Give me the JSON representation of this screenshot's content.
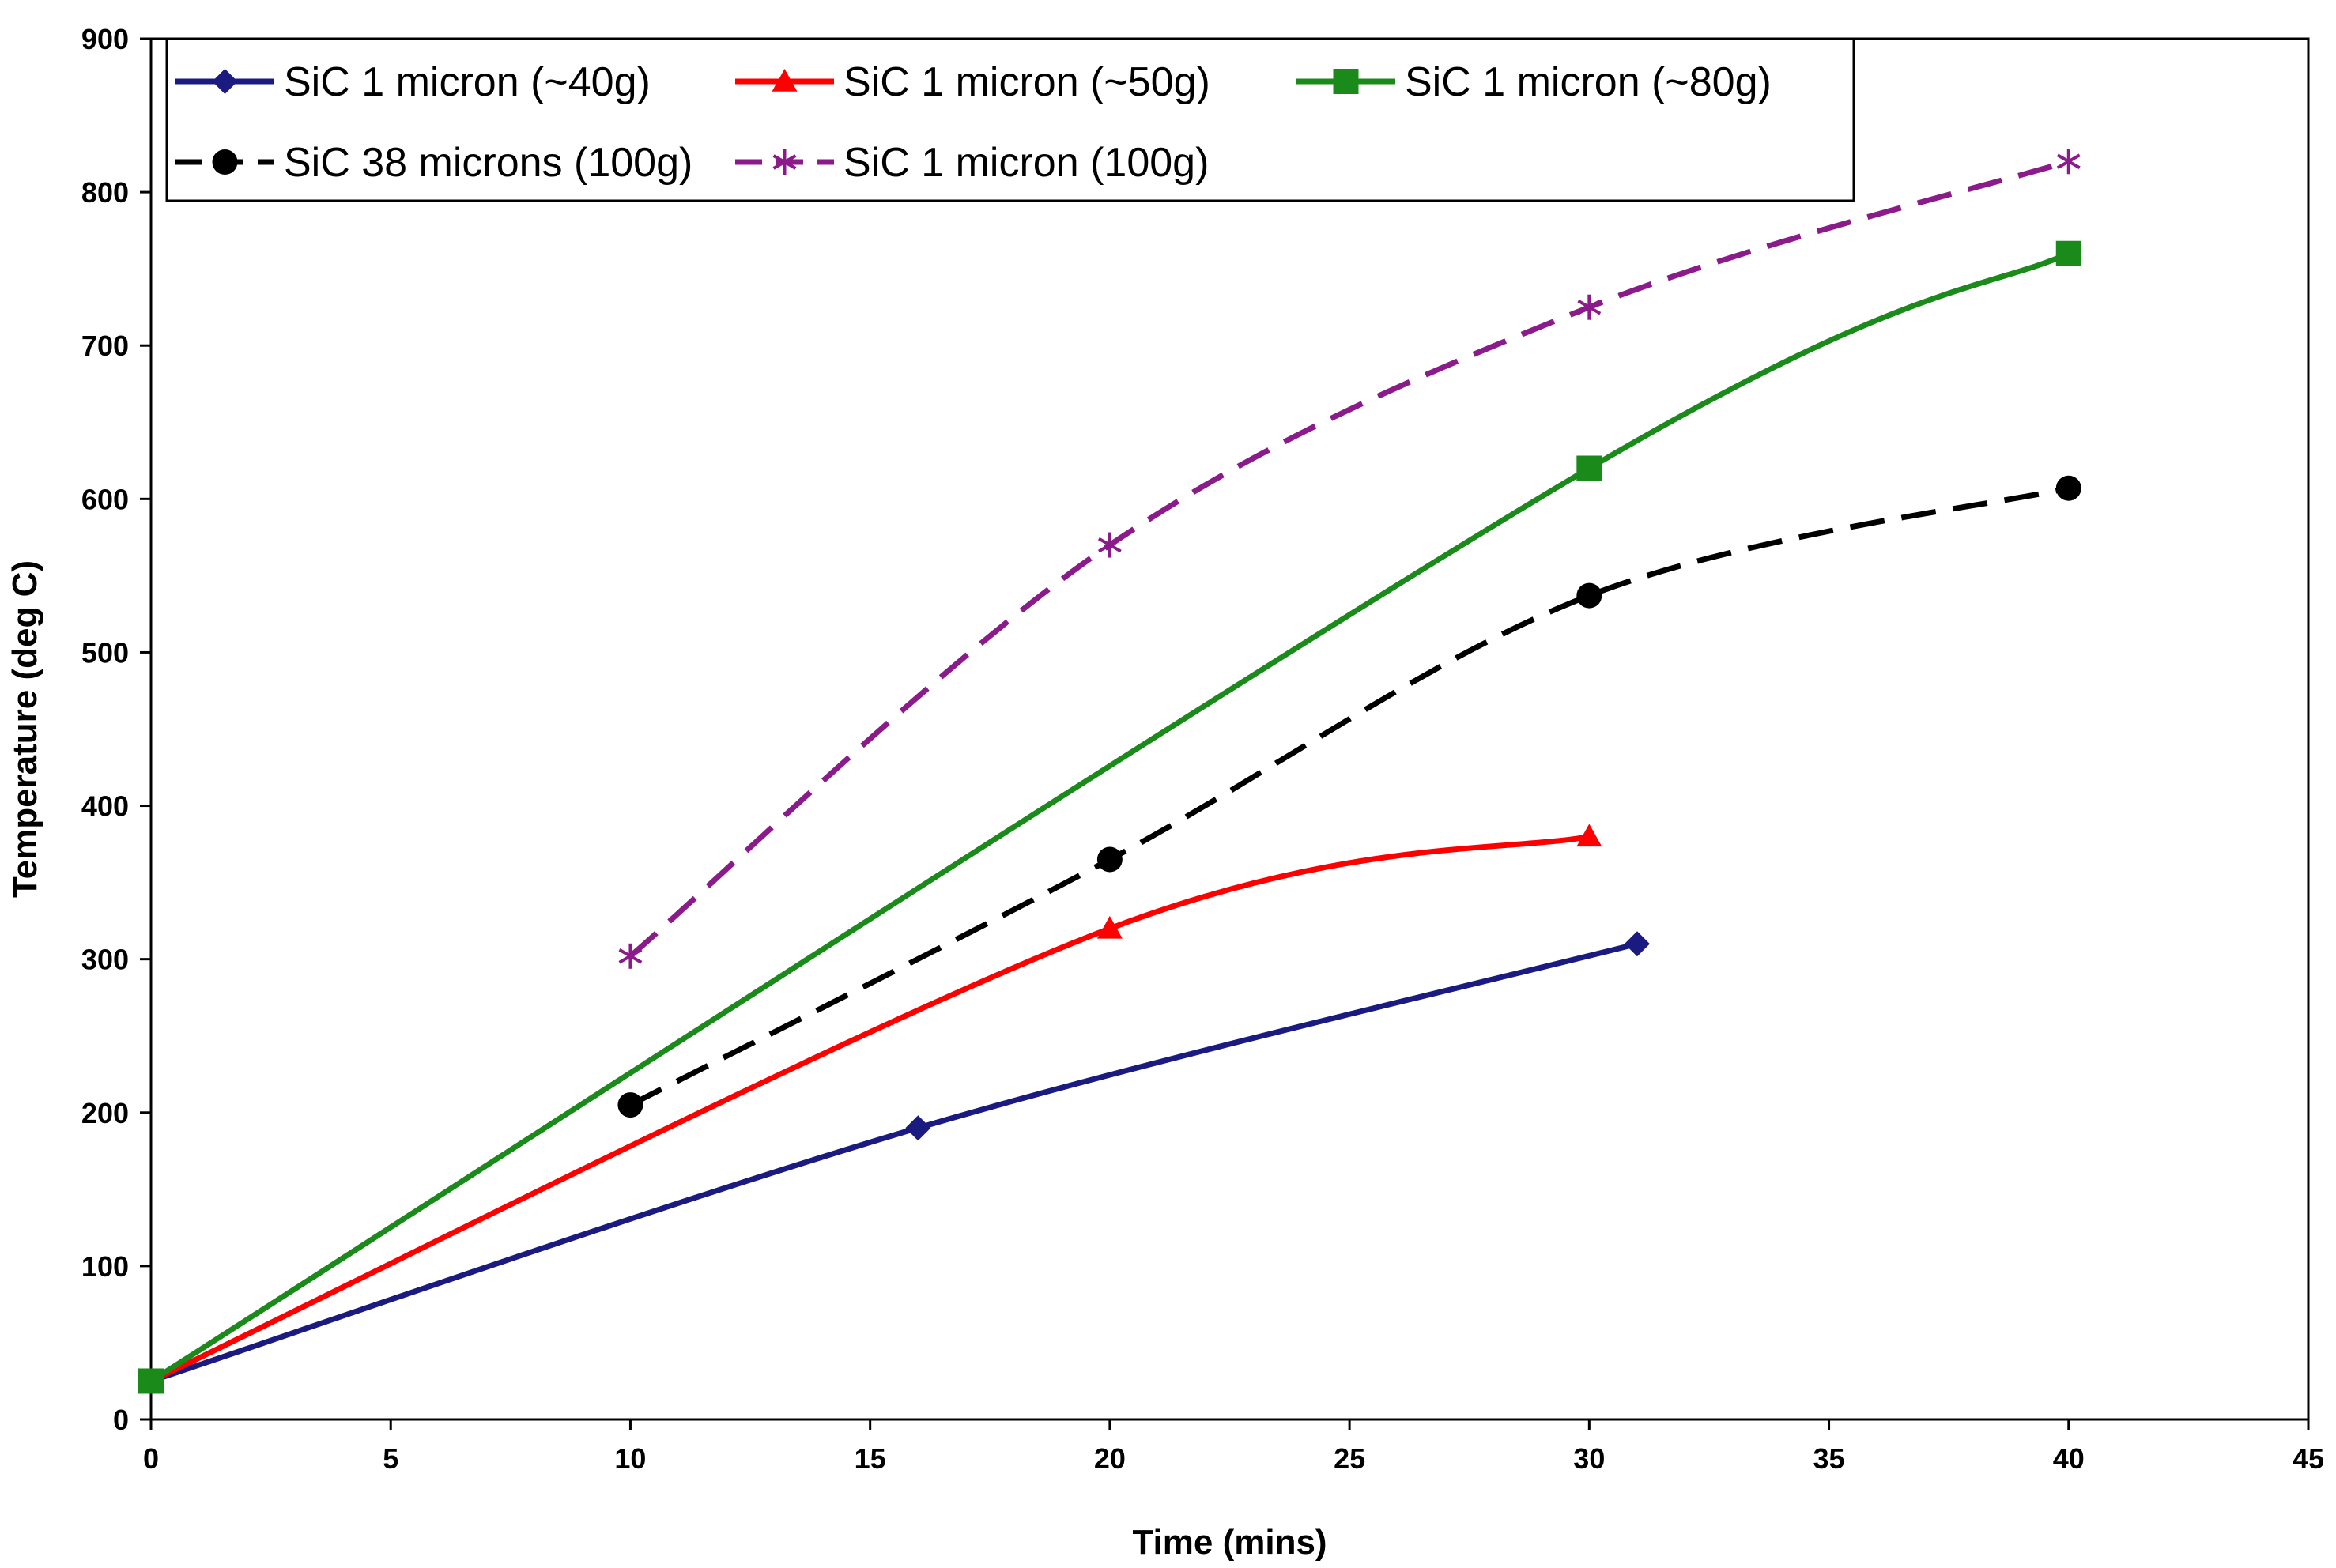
{
  "chart_data": {
    "type": "line",
    "title": "",
    "xlabel": "Time (mins)",
    "ylabel": "Temperature (deg C)",
    "xlim": [
      0,
      45
    ],
    "ylim": [
      0,
      900
    ],
    "xticks": [
      0,
      5,
      10,
      15,
      20,
      25,
      30,
      35,
      40,
      45
    ],
    "yticks": [
      0,
      100,
      200,
      300,
      400,
      500,
      600,
      700,
      800,
      900
    ],
    "grid": false,
    "legend_position": "top-left",
    "series": [
      {
        "name": "SiC 1 micron (~40g)",
        "color": "#1a1a80",
        "marker": "diamond",
        "dash": "solid",
        "x": [
          0,
          16,
          31
        ],
        "y": [
          25,
          190,
          310
        ]
      },
      {
        "name": "SiC 1 micron (~50g)",
        "color": "#ff0000",
        "marker": "triangle",
        "dash": "solid",
        "x": [
          0,
          20,
          30
        ],
        "y": [
          25,
          320,
          380
        ]
      },
      {
        "name": "SiC 1 micron (~80g)",
        "color": "#1a8a1a",
        "marker": "square",
        "dash": "solid",
        "x": [
          0,
          30,
          40
        ],
        "y": [
          25,
          620,
          760
        ]
      },
      {
        "name": "SiC 38 microns (100g)",
        "color": "#000000",
        "marker": "circle",
        "dash": "dashed",
        "x": [
          10,
          20,
          30,
          40
        ],
        "y": [
          205,
          365,
          537,
          607
        ]
      },
      {
        "name": "SiC 1 micron (100g)",
        "color": "#8b1a8b",
        "marker": "asterisk",
        "dash": "dashed",
        "x": [
          10,
          20,
          30,
          40
        ],
        "y": [
          302,
          570,
          725,
          820
        ]
      }
    ]
  }
}
